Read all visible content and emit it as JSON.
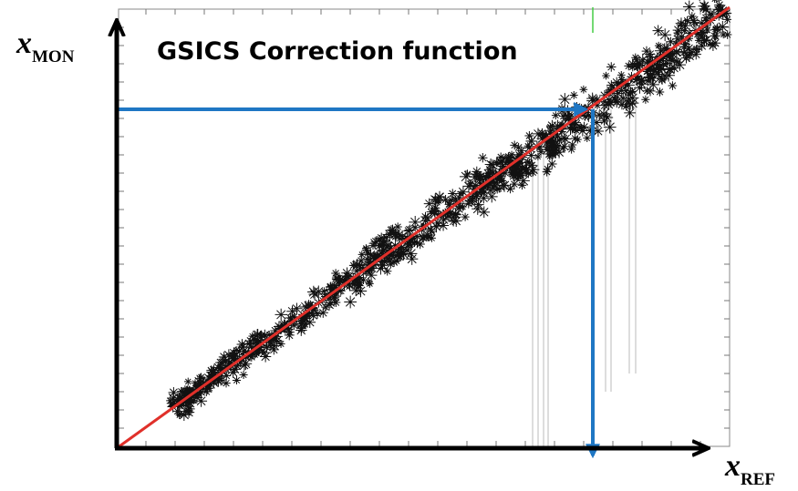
{
  "title": "GSICS Correction function",
  "y_axis_label": {
    "symbol": "x",
    "subscript": "MON"
  },
  "x_axis_label": {
    "symbol": "x",
    "subscript": "REF"
  }
}
